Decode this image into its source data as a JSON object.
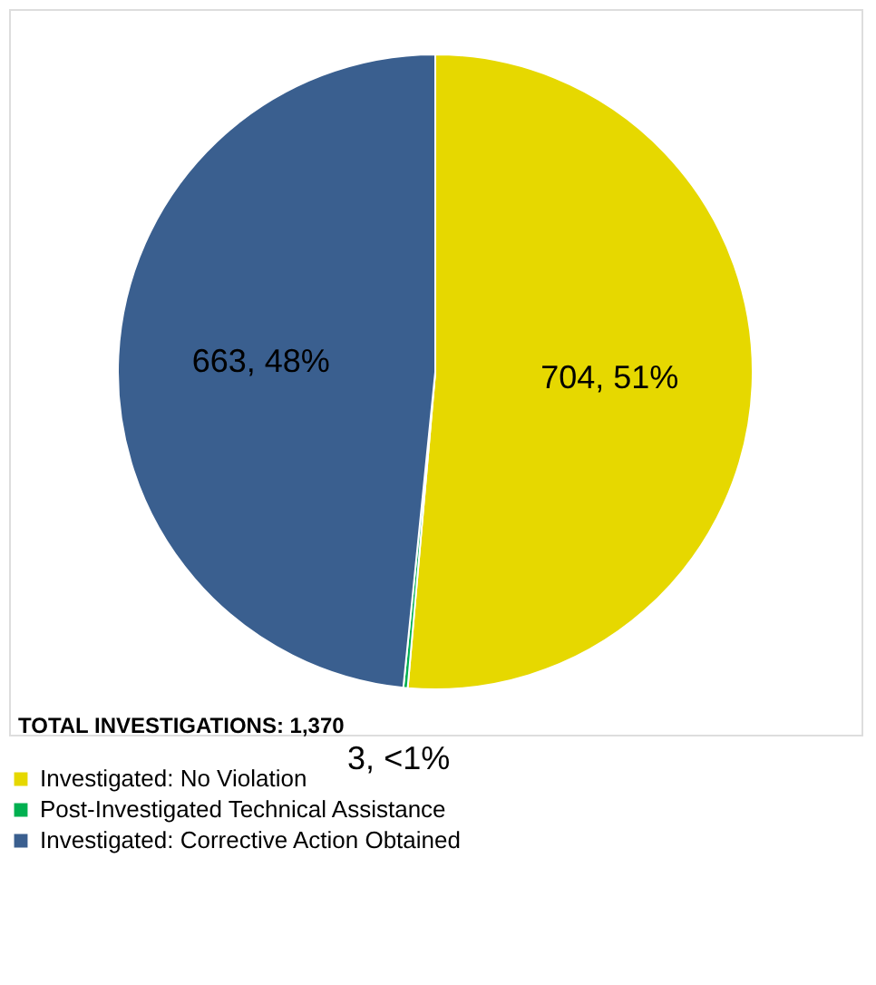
{
  "chart_data": {
    "type": "pie",
    "categories": [
      "Investigated:  No Violation",
      "Post-Investigated Technical Assistance",
      "Investigated:  Corrective Action Obtained"
    ],
    "values": [
      704,
      3,
      663
    ],
    "colors": [
      "#e6d800",
      "#00b050",
      "#3a5f8f"
    ],
    "value_labels": [
      "704, 51%",
      "3, <1%",
      "663, 48%"
    ],
    "annotations": [
      "TOTAL INVESTIGATIONS: 1,370"
    ],
    "legend": "bottom"
  }
}
